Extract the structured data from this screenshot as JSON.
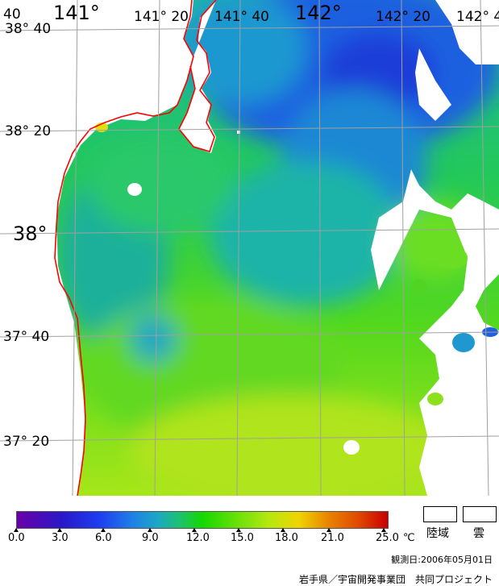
{
  "map": {
    "lon_labels": [
      {
        "text": "141°",
        "big": true
      },
      {
        "text": "141° 20",
        "big": false
      },
      {
        "text": "141° 40",
        "big": false
      },
      {
        "text": "142°",
        "big": true
      },
      {
        "text": "142° 20",
        "big": false
      },
      {
        "text": "142° 4",
        "big": false
      }
    ],
    "corner_label": "40",
    "lat_labels": [
      {
        "text": "38° 40",
        "big": false
      },
      {
        "text": "38° 20",
        "big": false
      },
      {
        "text": "38°",
        "big": true
      },
      {
        "text": "37° 40",
        "big": false
      },
      {
        "text": "37° 20",
        "big": false
      }
    ],
    "coast_color": "#ff0000",
    "grid_color": "#a0a0a0"
  },
  "legend": {
    "ticks": [
      "0.0",
      "3.0",
      "6.0",
      "9.0",
      "12.0",
      "15.0",
      "18.0",
      "21.0",
      "25.0"
    ],
    "unit": "℃",
    "land_label": "陸域",
    "cloud_label": "雲"
  },
  "footer": {
    "date": "観測日:2006年05月01日",
    "credit": "岩手県／宇宙開発事業団　共同プロジェクト"
  }
}
